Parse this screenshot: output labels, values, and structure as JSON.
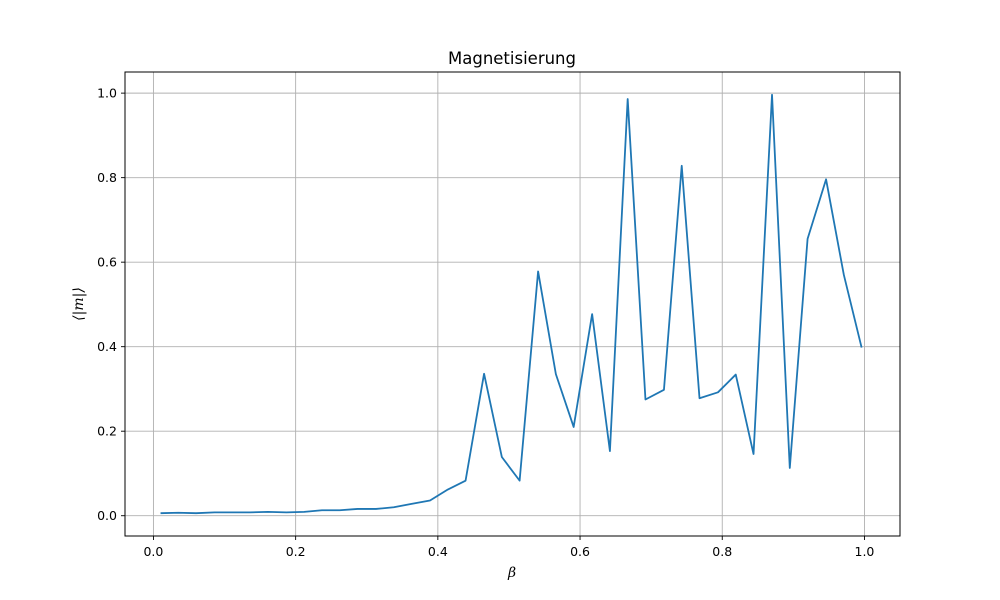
{
  "chart_data": {
    "type": "line",
    "title": "Magnetisierung",
    "xlabel": "β",
    "ylabel": "⟨|m|⟩",
    "xlim": [
      -0.04,
      1.05
    ],
    "ylim": [
      -0.048,
      1.05
    ],
    "xticks": [
      0.0,
      0.2,
      0.4,
      0.6,
      0.8,
      1.0
    ],
    "xtick_labels": [
      "0.0",
      "0.2",
      "0.4",
      "0.6",
      "0.8",
      "1.0"
    ],
    "yticks": [
      0.0,
      0.2,
      0.4,
      0.6,
      0.8,
      1.0
    ],
    "ytick_labels": [
      "0.0",
      "0.2",
      "0.4",
      "0.6",
      "0.8",
      "1.0"
    ],
    "grid": true,
    "line_color": "#1f77b4",
    "series": [
      {
        "x": [
          0.01,
          0.035,
          0.06,
          0.086,
          0.111,
          0.136,
          0.161,
          0.187,
          0.212,
          0.237,
          0.262,
          0.287,
          0.313,
          0.338,
          0.363,
          0.389,
          0.414,
          0.439,
          0.465,
          0.49,
          0.515,
          0.541,
          0.566,
          0.591,
          0.617,
          0.642,
          0.667,
          0.692,
          0.718,
          0.743,
          0.768,
          0.794,
          0.819,
          0.844,
          0.87,
          0.895,
          0.92,
          0.946,
          0.971,
          0.996
        ],
        "values": [
          0.006,
          0.007,
          0.006,
          0.008,
          0.008,
          0.008,
          0.009,
          0.008,
          0.009,
          0.013,
          0.013,
          0.016,
          0.016,
          0.02,
          0.028,
          0.036,
          0.062,
          0.083,
          0.336,
          0.139,
          0.083,
          0.578,
          0.335,
          0.21,
          0.477,
          0.153,
          0.986,
          0.275,
          0.298,
          0.828,
          0.278,
          0.292,
          0.334,
          0.146,
          0.996,
          0.113,
          0.655,
          0.796,
          0.57,
          0.398
        ]
      }
    ]
  }
}
